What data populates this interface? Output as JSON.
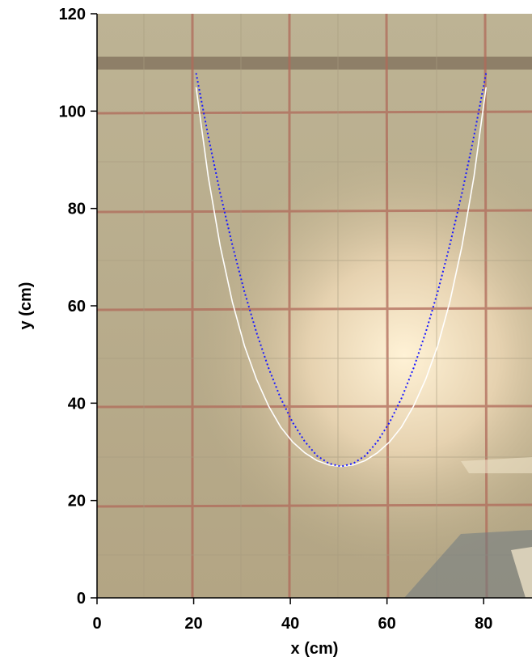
{
  "chart_data": {
    "type": "line",
    "xlabel": "x (cm)",
    "ylabel": "y (cm)",
    "x": [
      20.5,
      23,
      25.5,
      28,
      30.5,
      33,
      35.5,
      38,
      40.5,
      43,
      45.5,
      48,
      50.5,
      53,
      55.5,
      58,
      60.5,
      63,
      65.5,
      68,
      70.5,
      73,
      75.5,
      78,
      80.5
    ],
    "series": [
      {
        "color": "#ffffff",
        "style": "solid",
        "values": [
          104.9,
          86.6,
          72.2,
          60.8,
          51.8,
          44.9,
          39.4,
          35.1,
          32.0,
          29.8,
          28.2,
          27.3,
          27,
          27.3,
          28.2,
          29.8,
          32.0,
          35.1,
          39.4,
          44.9,
          51.8,
          60.8,
          72.2,
          86.6,
          104.9
        ]
      },
      {
        "color": "#1a1aff",
        "style": "dotted",
        "values": [
          107.8,
          94.9,
          83.1,
          72.5,
          62.9,
          54.5,
          47.2,
          41.0,
          36.0,
          32.1,
          29.2,
          27.6,
          27,
          27.6,
          29.2,
          32.1,
          36.0,
          41.0,
          47.2,
          54.5,
          62.9,
          72.5,
          83.1,
          94.9,
          107.8
        ]
      }
    ],
    "xlim": [
      0,
      90
    ],
    "ylim": [
      0,
      120
    ],
    "xticks": [
      0,
      20,
      40,
      60,
      80
    ],
    "yticks": [
      0,
      20,
      40,
      60,
      80,
      100,
      120
    ]
  }
}
